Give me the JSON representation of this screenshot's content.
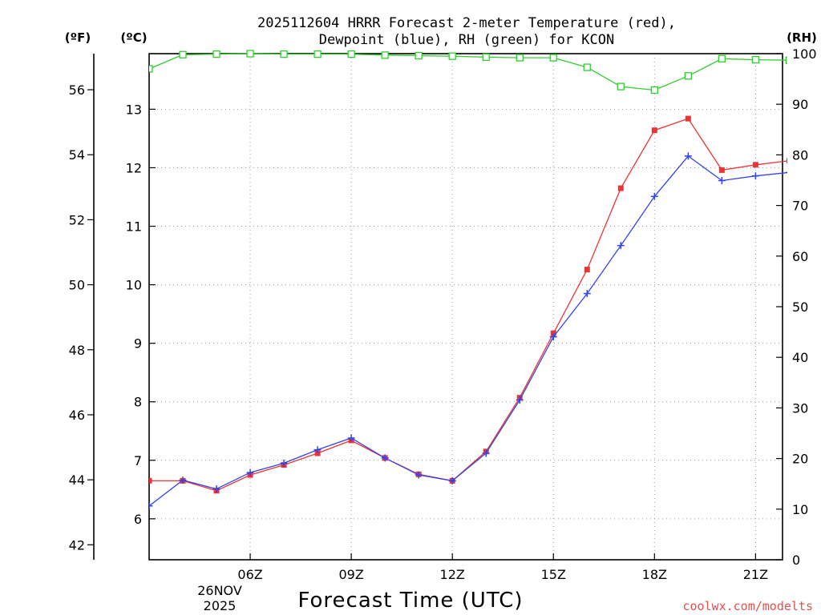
{
  "chart_data": {
    "type": "line",
    "title_line1": "2025112604 HRRR Forecast 2-meter Temperature (red),",
    "title_line2": "Dewpoint (blue), RH (green) for KCON",
    "xlabel": "Forecast Time (UTC)",
    "credit": "coolwx.com/modelts",
    "unit_f": "(ºF)",
    "unit_c": "(ºC)",
    "unit_rh": "(RH)",
    "date_label_1": "26NOV",
    "date_label_2": "2025",
    "x_hours": [
      3,
      4,
      5,
      6,
      7,
      8,
      9,
      10,
      11,
      12,
      13,
      14,
      15,
      16,
      17,
      18,
      19,
      20,
      21,
      22
    ],
    "x_range": [
      3,
      21.8
    ],
    "x_ticks": [
      {
        "hour": 6,
        "label": "06Z"
      },
      {
        "hour": 9,
        "label": "09Z"
      },
      {
        "hour": 12,
        "label": "12Z"
      },
      {
        "hour": 15,
        "label": "15Z"
      },
      {
        "hour": 18,
        "label": "18Z"
      },
      {
        "hour": 21,
        "label": "21Z"
      }
    ],
    "ylim_c": [
      5.3,
      13.95
    ],
    "ylim_f": [
      41.54,
      57.11
    ],
    "ylim_rh": [
      0,
      100
    ],
    "y_ticks_c": [
      "6",
      "7",
      "8",
      "9",
      "10",
      "11",
      "12",
      "13"
    ],
    "y_ticks_f": [
      "42",
      "44",
      "46",
      "48",
      "50",
      "52",
      "54",
      "56"
    ],
    "y_ticks_rh": [
      "0",
      "10",
      "20",
      "30",
      "40",
      "50",
      "60",
      "70",
      "80",
      "90",
      "100"
    ],
    "series": [
      {
        "name": "Temperature",
        "color": "#ee3333",
        "marker": "square-filled",
        "values": [
          6.65,
          6.65,
          6.48,
          6.75,
          6.92,
          7.12,
          7.34,
          7.04,
          6.76,
          6.65,
          7.15,
          8.07,
          9.17,
          10.26,
          11.65,
          12.64,
          12.84,
          11.96,
          12.05,
          12.12
        ]
      },
      {
        "name": "Dewpoint",
        "color": "#3344ee",
        "marker": "plus",
        "values": [
          6.22,
          6.66,
          6.51,
          6.79,
          6.95,
          7.18,
          7.38,
          7.04,
          6.75,
          6.65,
          7.12,
          8.03,
          9.11,
          9.85,
          10.67,
          11.51,
          12.2,
          11.78,
          11.86,
          11.92
        ]
      },
      {
        "name": "RH",
        "color": "#33cc33",
        "marker": "square-open",
        "values": [
          97,
          99.8,
          99.9,
          100,
          99.9,
          99.9,
          99.9,
          99.7,
          99.6,
          99.5,
          99.3,
          99.2,
          99.2,
          97.3,
          93.5,
          92.8,
          95.6,
          99.0,
          98.8,
          98.7
        ]
      }
    ]
  }
}
